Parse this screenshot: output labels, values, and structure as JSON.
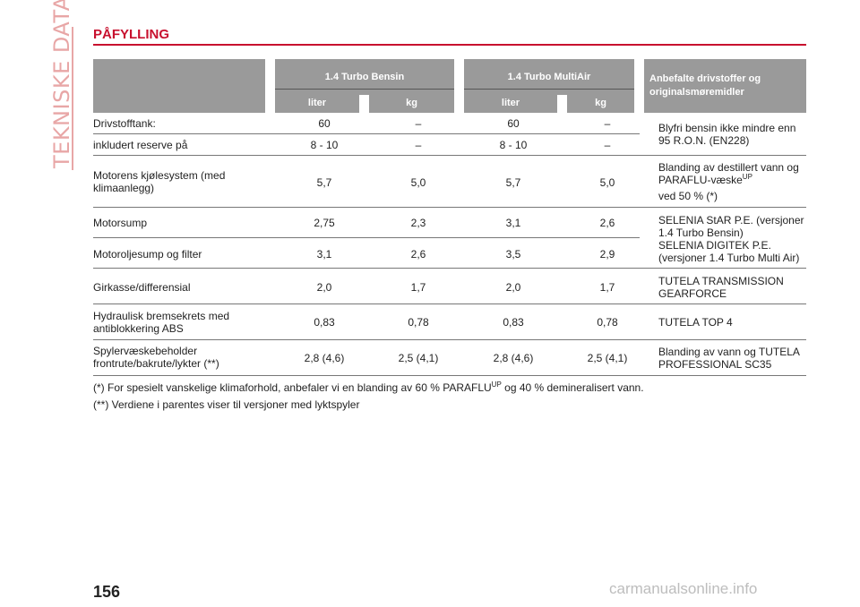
{
  "side_label": "TEKNISKE DATA",
  "title": "PÅFYLLING",
  "header": {
    "group1": "1.4 Turbo Bensin",
    "group2": "1.4 Turbo MultiAir",
    "recommend": "Anbefalte drivstoffer og originalsmøremidler",
    "liter": "liter",
    "kg": "kg"
  },
  "rows": [
    {
      "label": "Drivstofftank:",
      "v": [
        "60",
        "–",
        "60",
        "–"
      ]
    },
    {
      "label": "inkludert reserve på",
      "v": [
        "8 - 10",
        "–",
        "8 - 10",
        "–"
      ]
    },
    {
      "label": "Motorens kjølesystem (med klimaanlegg)",
      "v": [
        "5,7",
        "5,0",
        "5,7",
        "5,0"
      ]
    },
    {
      "label": "Motorsump",
      "v": [
        "2,75",
        "2,3",
        "3,1",
        "2,6"
      ]
    },
    {
      "label": "Motoroljesump og filter",
      "v": [
        "3,1",
        "2,6",
        "3,5",
        "2,9"
      ]
    },
    {
      "label": "Girkasse/differensial",
      "v": [
        "2,0",
        "1,7",
        "2,0",
        "1,7"
      ]
    },
    {
      "label": "Hydraulisk bremsekrets med antiblokkering ABS",
      "v": [
        "0,83",
        "0,78",
        "0,83",
        "0,78"
      ]
    },
    {
      "label": "Spylervæskebeholder frontrute/bakrute/lykter (**)",
      "v": [
        "2,8 (4,6)",
        "2,5 (4,1)",
        "2,8 (4,6)",
        "2,5 (4,1)"
      ]
    }
  ],
  "recs": {
    "fuel": "Blyfri bensin ikke mindre enn 95 R.O.N. (EN228)",
    "coolant_a": "Blanding av destillert vann og PARAFLU-væske",
    "coolant_sup": "UP",
    "coolant_b": "ved 50 % (*)",
    "oil_a": "SELENIA StAR P.E. (versjoner 1.4 Turbo Bensin)",
    "oil_b": "SELENIA DIGITEK P.E. (versjoner 1.4 Turbo Multi Air)",
    "gear": "TUTELA TRANSMISSION GEARFORCE",
    "brake": "TUTELA TOP 4",
    "washer": "Blanding av vann og TUTELA PROFESSIONAL SC35"
  },
  "notes": {
    "n1_a": "(*) For spesielt vanskelige klimaforhold, anbefaler vi en blanding av 60 % PARAFLU",
    "n1_sup": "UP",
    "n1_b": "og 40 % demineralisert vann.",
    "n2": "(**) Verdiene i parentes viser til versjoner med lyktspyler"
  },
  "page_number": "156",
  "watermark": "carmanualsonline.info"
}
